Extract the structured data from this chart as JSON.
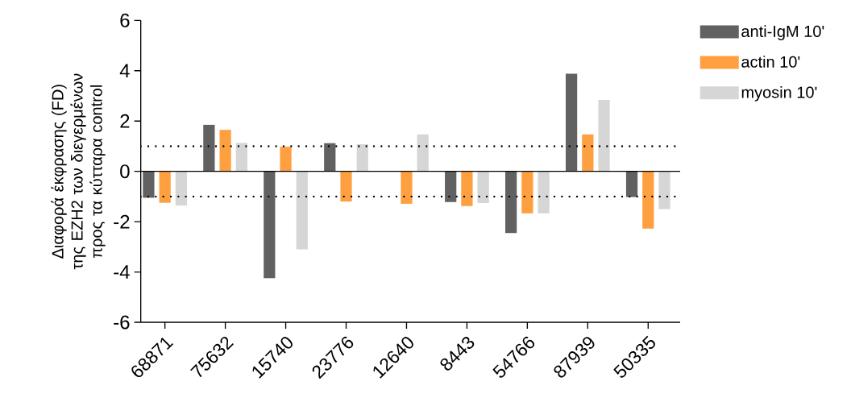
{
  "chart_data": {
    "type": "bar",
    "ylabel": "Διαφορά έκφρασης (FD) της EZH2 των διεγερμένων προς τα κύτταρα control",
    "categories": [
      "68871",
      "75632",
      "15740",
      "23776",
      "12640",
      "8443",
      "54766",
      "87939",
      "50335"
    ],
    "series": [
      {
        "name": "anti-IgM 10'",
        "color": "#616161",
        "values": [
          -1.05,
          1.85,
          -4.25,
          1.12,
          null,
          -1.22,
          -2.45,
          3.88,
          -1.02
        ]
      },
      {
        "name": "actin 10'",
        "color": "#ffa040",
        "values": [
          -1.25,
          1.65,
          0.98,
          -1.2,
          -1.29,
          -1.38,
          -1.67,
          1.47,
          -2.28
        ]
      },
      {
        "name": "myosin 10'",
        "color": "#d6d6d6",
        "values": [
          -1.36,
          1.13,
          -3.1,
          1.08,
          1.47,
          -1.26,
          -1.67,
          2.84,
          -1.5
        ]
      }
    ],
    "ylim": [
      -6,
      6
    ],
    "yticks": [
      -6,
      -4,
      -2,
      0,
      2,
      4,
      6
    ],
    "ref_lines": [
      {
        "axis": "y",
        "value": 1,
        "color": "#000000",
        "line_style": "dotted"
      },
      {
        "axis": "y",
        "value": -1,
        "color": "#000000",
        "line_style": "dotted"
      }
    ],
    "legend": "top right"
  }
}
